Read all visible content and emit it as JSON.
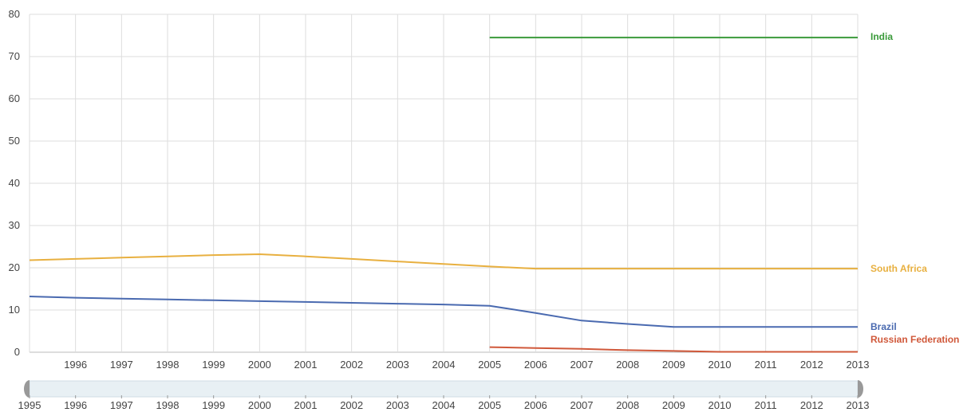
{
  "chart_data": {
    "type": "line",
    "title": "",
    "xlabel": "",
    "ylabel": "",
    "x": [
      1995,
      1996,
      1997,
      1998,
      1999,
      2000,
      2001,
      2002,
      2003,
      2004,
      2005,
      2006,
      2007,
      2008,
      2009,
      2010,
      2011,
      2012,
      2013
    ],
    "xlim": [
      1995,
      2013
    ],
    "ylim": [
      0,
      80
    ],
    "y_ticks": [
      0,
      10,
      20,
      30,
      40,
      50,
      60,
      70,
      80
    ],
    "x_ticks": [
      "1996",
      "1997",
      "1998",
      "1999",
      "2000",
      "2001",
      "2002",
      "2003",
      "2004",
      "2005",
      "2006",
      "2007",
      "2008",
      "2009",
      "2010",
      "2011",
      "2012",
      "2013"
    ],
    "grid": true,
    "legend": "inline-right",
    "series": [
      {
        "name": "India",
        "color": "#3a9a3a",
        "points": [
          [
            2005,
            74.5
          ],
          [
            2006,
            74.5
          ],
          [
            2007,
            74.5
          ],
          [
            2008,
            74.5
          ],
          [
            2009,
            74.5
          ],
          [
            2010,
            74.5
          ],
          [
            2011,
            74.5
          ],
          [
            2012,
            74.5
          ],
          [
            2013,
            74.5
          ]
        ]
      },
      {
        "name": "South Africa",
        "color": "#e8b040",
        "points": [
          [
            1995,
            21.8
          ],
          [
            1996,
            22.1
          ],
          [
            1997,
            22.4
          ],
          [
            1998,
            22.7
          ],
          [
            1999,
            23.0
          ],
          [
            2000,
            23.2
          ],
          [
            2001,
            22.7
          ],
          [
            2002,
            22.1
          ],
          [
            2003,
            21.5
          ],
          [
            2004,
            20.9
          ],
          [
            2005,
            20.3
          ],
          [
            2006,
            19.8
          ],
          [
            2007,
            19.8
          ],
          [
            2008,
            19.8
          ],
          [
            2009,
            19.8
          ],
          [
            2010,
            19.8
          ],
          [
            2011,
            19.8
          ],
          [
            2012,
            19.8
          ],
          [
            2013,
            19.8
          ]
        ]
      },
      {
        "name": "Brazil",
        "color": "#4a6ab0",
        "points": [
          [
            1995,
            13.2
          ],
          [
            1996,
            12.9
          ],
          [
            1997,
            12.7
          ],
          [
            1998,
            12.5
          ],
          [
            1999,
            12.3
          ],
          [
            2000,
            12.1
          ],
          [
            2001,
            11.9
          ],
          [
            2002,
            11.7
          ],
          [
            2003,
            11.5
          ],
          [
            2004,
            11.3
          ],
          [
            2005,
            11.0
          ],
          [
            2006,
            9.3
          ],
          [
            2007,
            7.5
          ],
          [
            2008,
            6.7
          ],
          [
            2009,
            6.0
          ],
          [
            2010,
            6.0
          ],
          [
            2011,
            6.0
          ],
          [
            2012,
            6.0
          ],
          [
            2013,
            6.0
          ]
        ]
      },
      {
        "name": "Russian Federation",
        "color": "#d0583a",
        "points": [
          [
            2005,
            1.2
          ],
          [
            2006,
            1.0
          ],
          [
            2007,
            0.8
          ],
          [
            2008,
            0.5
          ],
          [
            2009,
            0.3
          ],
          [
            2010,
            0.1
          ],
          [
            2011,
            0.1
          ],
          [
            2012,
            0.1
          ],
          [
            2013,
            0.1
          ]
        ]
      }
    ],
    "range_slider": {
      "ticks": [
        "1995",
        "1996",
        "1997",
        "1998",
        "1999",
        "2000",
        "2001",
        "2002",
        "2003",
        "2004",
        "2005",
        "2006",
        "2007",
        "2008",
        "2009",
        "2010",
        "2011",
        "2012",
        "2013"
      ],
      "start": 1995,
      "end": 2013
    }
  }
}
